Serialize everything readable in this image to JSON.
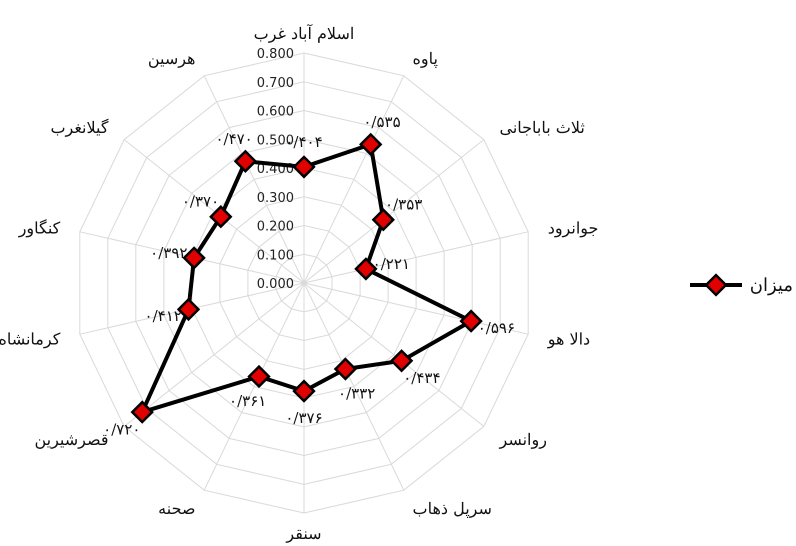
{
  "chart_data": {
    "type": "radar",
    "title": "",
    "grid": true,
    "legend_position": "right",
    "rmax": 0.8,
    "ticks": [
      "0.000",
      "0.100",
      "0.200",
      "0.300",
      "0.400",
      "0.500",
      "0.600",
      "0.700",
      "0.800"
    ],
    "categories": [
      "اسلام آباد غرب",
      "پاوه",
      "ثلاث باباجانی",
      "جوانرود",
      "دالا هو",
      "روانسر",
      "سرپل ذهاب",
      "سنقر",
      "صحنه",
      "قصرشیرین",
      "کرمانشاه",
      "کنگاور",
      "گیلانغرب",
      "هرسین"
    ],
    "series": [
      {
        "name": "میزان",
        "color": "#e00000",
        "values": [
          0.404,
          0.535,
          0.353,
          0.221,
          0.596,
          0.434,
          0.332,
          0.376,
          0.361,
          0.72,
          0.412,
          0.392,
          0.37,
          0.47
        ]
      }
    ],
    "data_labels": [
      "۰/۴۰۴",
      "۰/۵۳۵",
      "۰/۳۵۳",
      "۰/۲۲۱",
      "۰/۵۹۶",
      "۰/۴۳۴",
      "۰/۳۳۲",
      "۰/۳۷۶",
      "۰/۳۶۱",
      "۰/۷۲۰",
      "۰/۴۱۲",
      "۰/۳۹۲",
      "۰/۳۷۰",
      "۰/۴۷۰"
    ]
  }
}
